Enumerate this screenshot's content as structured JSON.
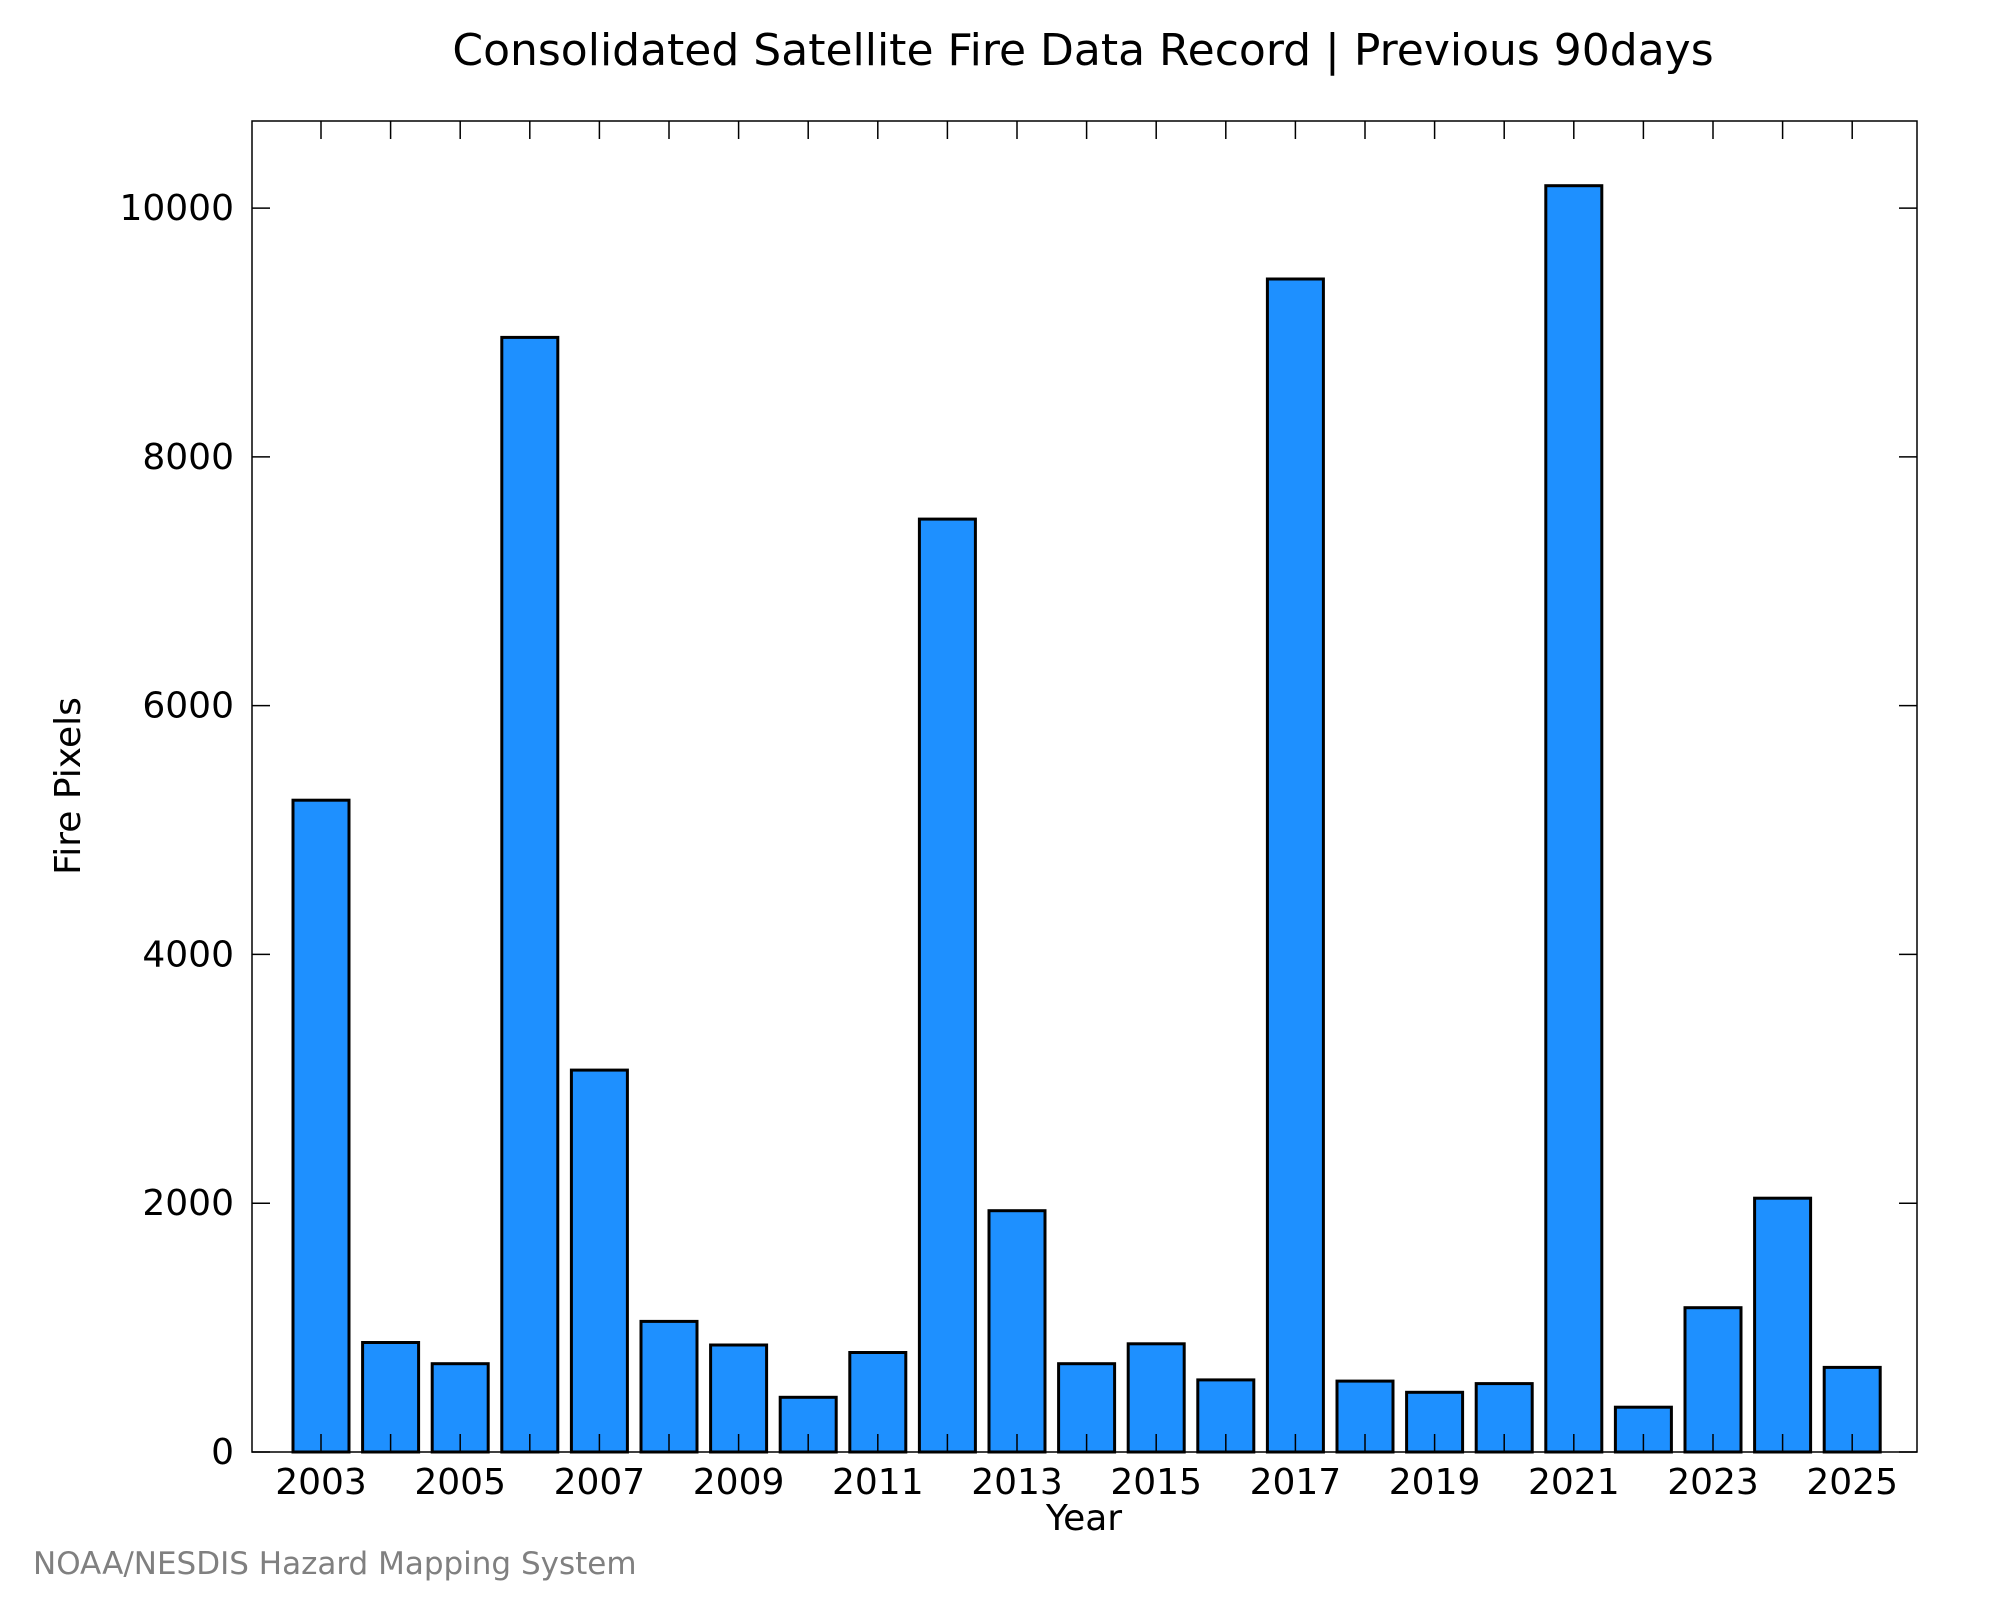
{
  "chart_data": {
    "type": "bar",
    "title": "Consolidated Satellite Fire Data Record | Previous 90days",
    "xlabel": "Year",
    "ylabel": "Fire Pixels",
    "categories": [
      "2003",
      "2004",
      "2005",
      "2006",
      "2007",
      "2008",
      "2009",
      "2010",
      "2011",
      "2012",
      "2013",
      "2014",
      "2015",
      "2016",
      "2017",
      "2018",
      "2019",
      "2020",
      "2021",
      "2022",
      "2023",
      "2024",
      "2025"
    ],
    "values": [
      5240,
      880,
      710,
      8960,
      3070,
      1050,
      860,
      440,
      800,
      7500,
      1940,
      710,
      870,
      580,
      9430,
      570,
      480,
      550,
      10180,
      360,
      1160,
      2040,
      680
    ],
    "ylim": [
      0,
      10700
    ],
    "yticks": [
      0,
      2000,
      4000,
      6000,
      8000,
      10000
    ],
    "xtick_labels": [
      "2003",
      "2005",
      "2007",
      "2009",
      "2011",
      "2013",
      "2015",
      "2017",
      "2019",
      "2021",
      "2023",
      "2025"
    ],
    "bar_color": "#1E90FF",
    "bar_edge_color": "#000000",
    "grid": false,
    "legend": "none"
  },
  "footer": {
    "credit": "NOAA/NESDIS Hazard Mapping System"
  }
}
